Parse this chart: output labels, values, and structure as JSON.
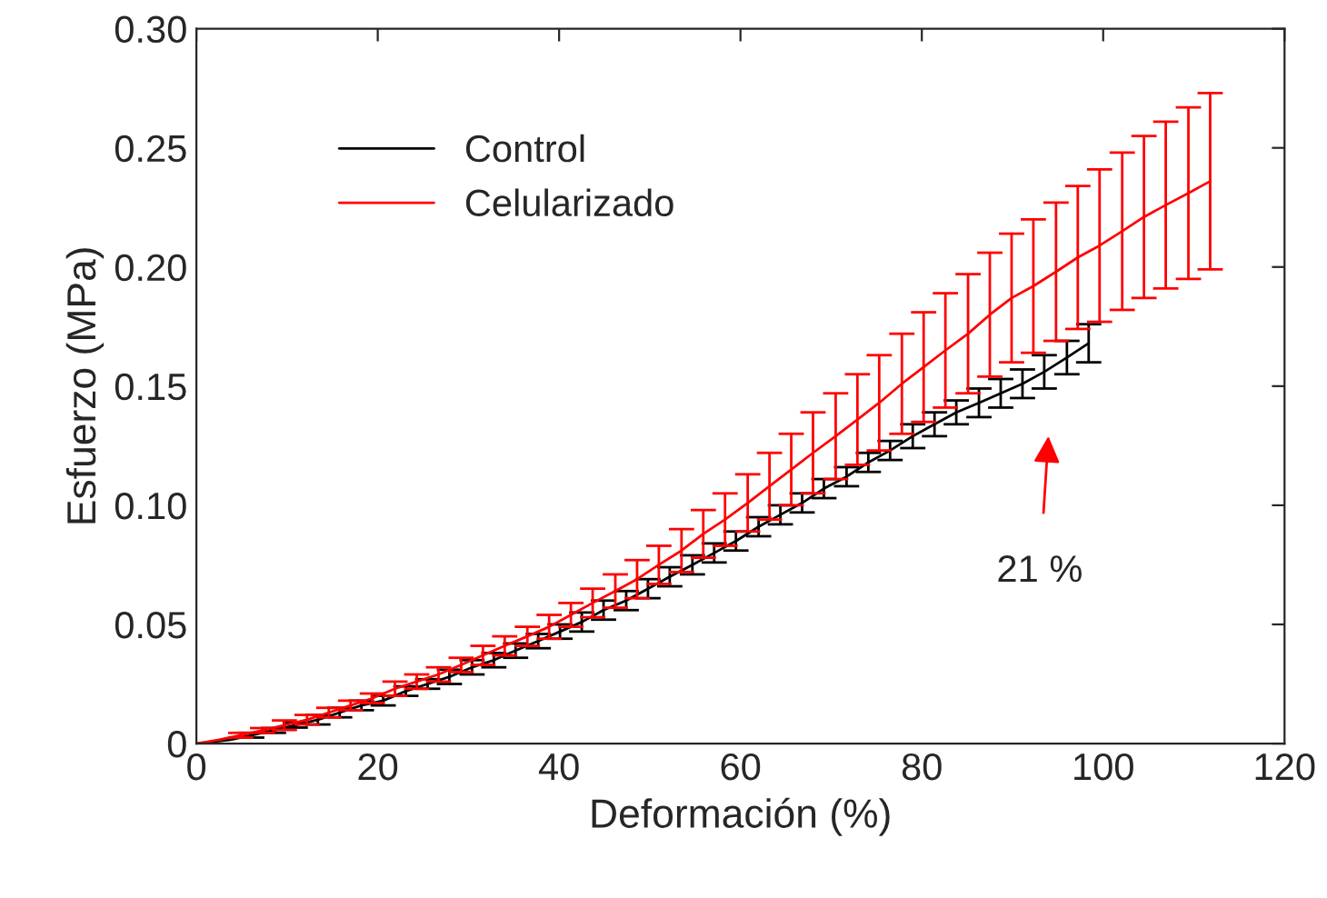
{
  "chart_data": {
    "type": "line",
    "xlabel": "Deformación (%)",
    "ylabel": "Esfuerzo (MPa)",
    "xlim": [
      0,
      120
    ],
    "xticks": [
      0,
      20,
      40,
      60,
      80,
      100,
      120
    ],
    "ylim": [
      0,
      0.3
    ],
    "yticks": [
      0,
      {
        "value": 0.05,
        "label": "0.05"
      },
      {
        "value": 0.1,
        "label": "0.10"
      },
      {
        "value": 0.15,
        "label": "0.15"
      },
      {
        "value": 0.2,
        "label": "0.20"
      },
      {
        "value": 0.25,
        "label": "0.25"
      },
      {
        "value": 0.3,
        "label": "0.30"
      }
    ],
    "grid": false,
    "legend": "top left",
    "marker": "none",
    "line_style": "solid",
    "annotations": [
      "21 %"
    ],
    "series": [
      {
        "name": "Control",
        "color": "#000000",
        "x": [
          0,
          3.6,
          6.1,
          8.5,
          10.9,
          13.4,
          15.8,
          18.2,
          20.6,
          23.1,
          25.5,
          27.9,
          30.4,
          32.8,
          35.2,
          37.7,
          40.1,
          42.5,
          44.9,
          47.4,
          49.8,
          52.2,
          54.7,
          57.1,
          59.5,
          62.0,
          64.4,
          66.8,
          69.2,
          71.7,
          74.1,
          76.5,
          79.0,
          81.4,
          83.8,
          86.3,
          88.7,
          91.1,
          93.5,
          96.0,
          98.4
        ],
        "values": [
          0,
          0.0015,
          0.0035,
          0.0055,
          0.0077,
          0.01,
          0.013,
          0.016,
          0.018,
          0.022,
          0.025,
          0.028,
          0.032,
          0.035,
          0.039,
          0.043,
          0.047,
          0.051,
          0.056,
          0.06,
          0.065,
          0.07,
          0.075,
          0.08,
          0.085,
          0.091,
          0.096,
          0.101,
          0.107,
          0.112,
          0.118,
          0.123,
          0.129,
          0.134,
          0.139,
          0.143,
          0.147,
          0.151,
          0.156,
          0.162,
          0.168
        ],
        "errors": [
          null,
          null,
          0.001,
          0.001,
          0.001,
          0.002,
          0.002,
          0.002,
          0.002,
          0.002,
          0.002,
          0.003,
          0.003,
          0.003,
          0.003,
          0.003,
          0.003,
          0.004,
          0.004,
          0.004,
          0.004,
          0.004,
          0.004,
          0.004,
          0.004,
          0.004,
          0.004,
          0.004,
          0.004,
          0.004,
          0.004,
          0.004,
          0.005,
          0.005,
          0.005,
          0.006,
          0.006,
          0.006,
          0.007,
          0.007,
          0.008
        ]
      },
      {
        "name": "Celularizado",
        "color": "#ff0000",
        "x": [
          0,
          2.4,
          4.9,
          7.3,
          9.7,
          12.2,
          14.6,
          17.0,
          19.4,
          21.9,
          24.3,
          26.7,
          29.2,
          31.6,
          34.0,
          36.5,
          38.9,
          41.3,
          43.7,
          46.2,
          48.6,
          51.0,
          53.5,
          55.9,
          58.3,
          60.8,
          63.2,
          65.6,
          68.0,
          70.5,
          72.9,
          75.3,
          77.8,
          80.2,
          82.6,
          85.1,
          87.5,
          89.9,
          92.3,
          94.8,
          97.2,
          99.6,
          102.1,
          104.5,
          106.9,
          109.4,
          111.8
        ],
        "values": [
          0,
          0.0015,
          0.0035,
          0.0055,
          0.0077,
          0.01,
          0.013,
          0.016,
          0.019,
          0.023,
          0.026,
          0.029,
          0.033,
          0.037,
          0.041,
          0.045,
          0.049,
          0.054,
          0.059,
          0.064,
          0.069,
          0.075,
          0.081,
          0.088,
          0.094,
          0.101,
          0.108,
          0.115,
          0.122,
          0.129,
          0.136,
          0.143,
          0.151,
          0.158,
          0.165,
          0.172,
          0.18,
          0.187,
          0.192,
          0.198,
          0.204,
          0.209,
          0.215,
          0.221,
          0.226,
          0.231,
          0.236
        ],
        "errors": [
          null,
          null,
          0.001,
          0.001,
          0.002,
          0.002,
          0.002,
          0.002,
          0.002,
          0.003,
          0.003,
          0.003,
          0.003,
          0.004,
          0.004,
          0.004,
          0.005,
          0.005,
          0.006,
          0.007,
          0.008,
          0.008,
          0.009,
          0.01,
          0.011,
          0.012,
          0.014,
          0.015,
          0.017,
          0.018,
          0.019,
          0.02,
          0.021,
          0.023,
          0.024,
          0.025,
          0.026,
          0.027,
          0.028,
          0.029,
          0.03,
          0.032,
          0.033,
          0.034,
          0.035,
          0.036,
          0.037
        ]
      }
    ]
  }
}
